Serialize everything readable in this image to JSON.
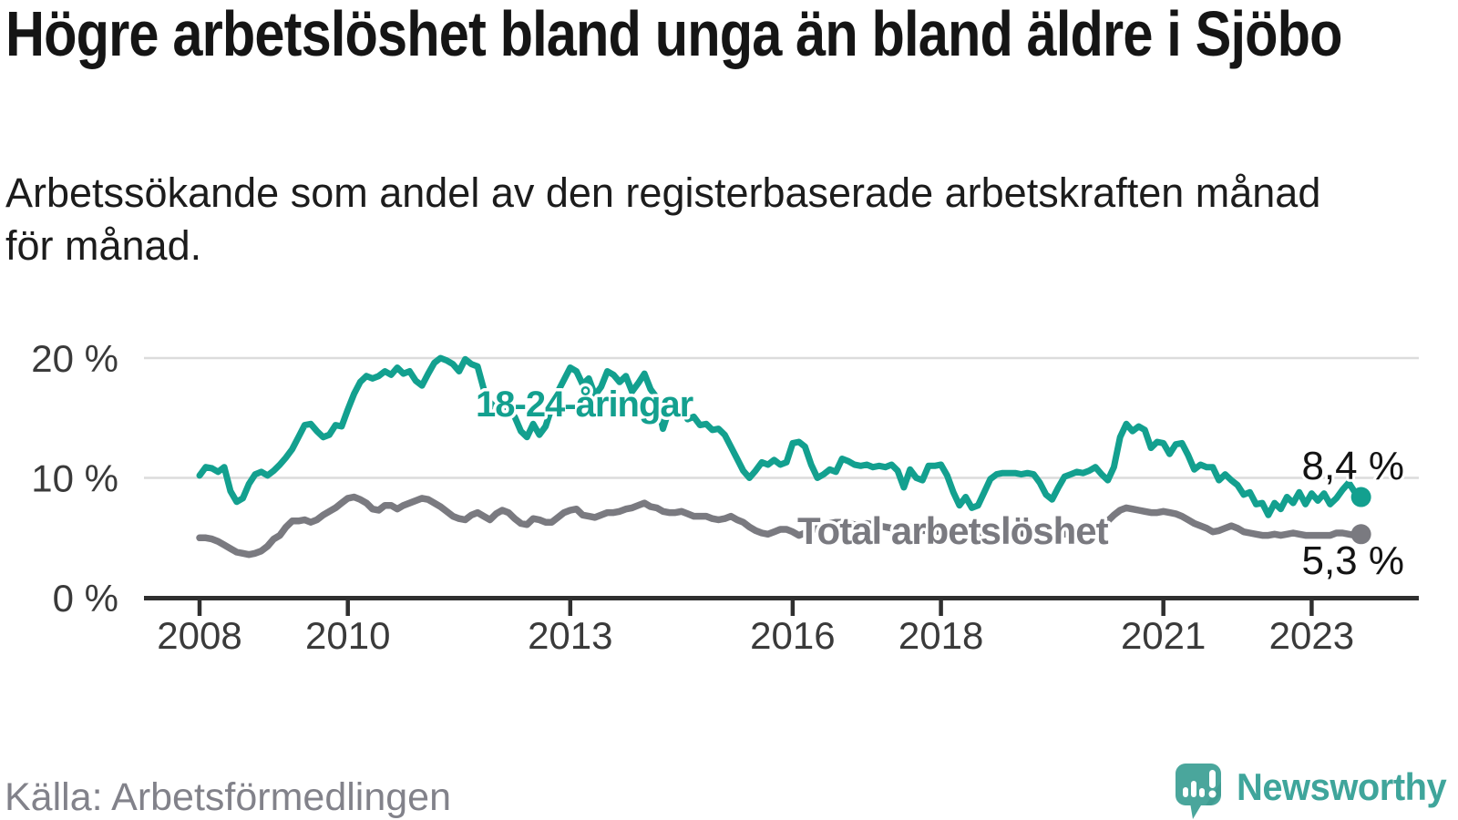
{
  "header": {
    "title": "Högre arbetslöshet bland unga än bland äldre i Sjöbo",
    "subtitle": "Arbetssökande som andel av den registerbaserade arbetskraften månad för månad."
  },
  "footer": {
    "source": "Källa: Arbetsförmedlingen",
    "brand": "Newsworthy"
  },
  "colors": {
    "youth_line": "#13A08F",
    "total_line": "#7A7A80",
    "grid": "#DCDCDC",
    "axis": "#2F2F2F",
    "tick_label": "#3A3A3A",
    "value_label": "#141414",
    "brand_teal": "#3FA59B",
    "logo_fill": "#4AA69C",
    "source_gray": "#82828A"
  },
  "chart_data": {
    "type": "line",
    "x_unit": "month",
    "x_start": "2008-01",
    "x_end": "2023-09",
    "grid": "horizontal",
    "ylim": [
      0,
      21
    ],
    "y_gridlines": [
      10,
      20
    ],
    "y_ticks": [
      {
        "value": 0,
        "label": "0 %"
      },
      {
        "value": 10,
        "label": "10 %"
      },
      {
        "value": 20,
        "label": "20 %"
      }
    ],
    "x_ticks": [
      {
        "year": 2008,
        "label": "2008"
      },
      {
        "year": 2010,
        "label": "2010"
      },
      {
        "year": 2013,
        "label": "2013"
      },
      {
        "year": 2016,
        "label": "2016"
      },
      {
        "year": 2018,
        "label": "2018"
      },
      {
        "year": 2021,
        "label": "2021"
      },
      {
        "year": 2023,
        "label": "2023"
      }
    ],
    "series": [
      {
        "name": "18-24-åringar",
        "color": "#13A08F",
        "end_value": 8.4,
        "end_label": "8,4 %",
        "values": [
          10.2,
          10.9,
          10.8,
          10.5,
          10.9,
          8.9,
          8.0,
          8.3,
          9.5,
          10.3,
          10.5,
          10.2,
          10.6,
          11.1,
          11.7,
          12.4,
          13.4,
          14.4,
          14.5,
          13.9,
          13.4,
          13.6,
          14.4,
          14.3,
          15.7,
          17.0,
          18.0,
          18.5,
          18.3,
          18.5,
          18.9,
          18.6,
          19.2,
          18.7,
          18.9,
          18.1,
          17.7,
          18.7,
          19.6,
          20.0,
          19.8,
          19.5,
          18.9,
          19.9,
          19.5,
          19.3,
          17.4,
          16.3,
          15.8,
          15.9,
          15.4,
          15.1,
          13.9,
          13.4,
          14.5,
          13.6,
          14.3,
          15.9,
          17.2,
          18.2,
          19.2,
          18.9,
          17.8,
          18.3,
          16.9,
          17.6,
          18.9,
          18.6,
          18.0,
          18.5,
          17.2,
          17.9,
          18.7,
          17.4,
          16.7,
          14.1,
          15.7,
          15.4,
          15.8,
          14.9,
          15.1,
          14.4,
          14.5,
          14.0,
          14.1,
          13.6,
          12.6,
          11.6,
          10.6,
          10.0,
          10.6,
          11.3,
          11.1,
          11.5,
          11.1,
          11.3,
          12.9,
          13.0,
          12.6,
          11.1,
          10.0,
          10.3,
          10.7,
          10.5,
          11.6,
          11.4,
          11.1,
          11.0,
          11.1,
          10.9,
          11.0,
          10.9,
          11.1,
          10.6,
          9.2,
          10.7,
          10.0,
          9.8,
          11.0,
          11.0,
          11.1,
          10.2,
          8.8,
          7.7,
          8.4,
          7.5,
          7.7,
          8.8,
          9.9,
          10.3,
          10.4,
          10.4,
          10.4,
          10.3,
          10.4,
          10.3,
          9.6,
          8.6,
          8.2,
          9.2,
          10.1,
          10.3,
          10.5,
          10.4,
          10.6,
          10.9,
          10.3,
          9.8,
          10.9,
          13.4,
          14.5,
          13.9,
          14.3,
          14.0,
          12.5,
          13.0,
          12.9,
          12.0,
          12.8,
          12.9,
          11.9,
          10.7,
          11.1,
          10.9,
          10.9,
          9.8,
          10.3,
          9.8,
          9.4,
          8.6,
          8.8,
          7.8,
          7.9,
          6.9,
          7.9,
          7.4,
          8.4,
          7.9,
          8.8,
          7.8,
          8.7,
          8.1,
          8.7,
          7.8,
          8.3,
          9.0,
          9.6,
          8.8,
          8.4
        ]
      },
      {
        "name": "Total arbetslöshet",
        "color": "#7A7A80",
        "end_value": 5.3,
        "end_label": "5,3 %",
        "values": [
          5.0,
          5.0,
          4.9,
          4.7,
          4.4,
          4.1,
          3.8,
          3.7,
          3.6,
          3.7,
          3.9,
          4.3,
          4.9,
          5.2,
          5.9,
          6.4,
          6.4,
          6.5,
          6.3,
          6.5,
          6.9,
          7.2,
          7.5,
          7.9,
          8.3,
          8.4,
          8.2,
          7.9,
          7.4,
          7.3,
          7.7,
          7.7,
          7.4,
          7.7,
          7.9,
          8.1,
          8.3,
          8.2,
          7.9,
          7.6,
          7.2,
          6.8,
          6.6,
          6.5,
          6.9,
          7.1,
          6.8,
          6.5,
          7.0,
          7.3,
          7.1,
          6.6,
          6.2,
          6.1,
          6.6,
          6.5,
          6.3,
          6.3,
          6.7,
          7.1,
          7.3,
          7.4,
          6.9,
          6.8,
          6.7,
          6.9,
          7.1,
          7.1,
          7.2,
          7.4,
          7.5,
          7.7,
          7.9,
          7.6,
          7.5,
          7.2,
          7.1,
          7.1,
          7.2,
          7.0,
          6.8,
          6.8,
          6.8,
          6.6,
          6.5,
          6.6,
          6.8,
          6.5,
          6.3,
          5.9,
          5.6,
          5.4,
          5.3,
          5.5,
          5.7,
          5.7,
          5.5,
          5.2,
          5.4,
          5.6,
          5.8,
          6.0,
          6.2,
          6.3,
          6.3,
          6.2,
          6.1,
          6.1,
          6.2,
          6.1,
          6.0,
          5.9,
          5.8,
          5.9,
          6.0,
          5.9,
          5.7,
          5.6,
          5.6,
          5.5,
          5.6,
          5.6,
          5.5,
          5.3,
          5.2,
          5.2,
          5.3,
          5.2,
          5.2,
          5.3,
          5.4,
          5.5,
          5.5,
          5.4,
          5.3,
          5.2,
          5.1,
          5.2,
          5.4,
          5.4,
          5.3,
          5.4,
          5.5,
          5.5,
          5.5,
          5.6,
          5.8,
          6.4,
          6.9,
          7.3,
          7.5,
          7.4,
          7.3,
          7.2,
          7.1,
          7.1,
          7.2,
          7.1,
          7.0,
          6.8,
          6.5,
          6.2,
          6.0,
          5.8,
          5.5,
          5.6,
          5.8,
          6.0,
          5.8,
          5.5,
          5.4,
          5.3,
          5.2,
          5.2,
          5.3,
          5.2,
          5.3,
          5.4,
          5.3,
          5.2,
          5.2,
          5.2,
          5.2,
          5.2,
          5.4,
          5.4,
          5.3,
          5.2,
          5.3
        ]
      }
    ]
  }
}
